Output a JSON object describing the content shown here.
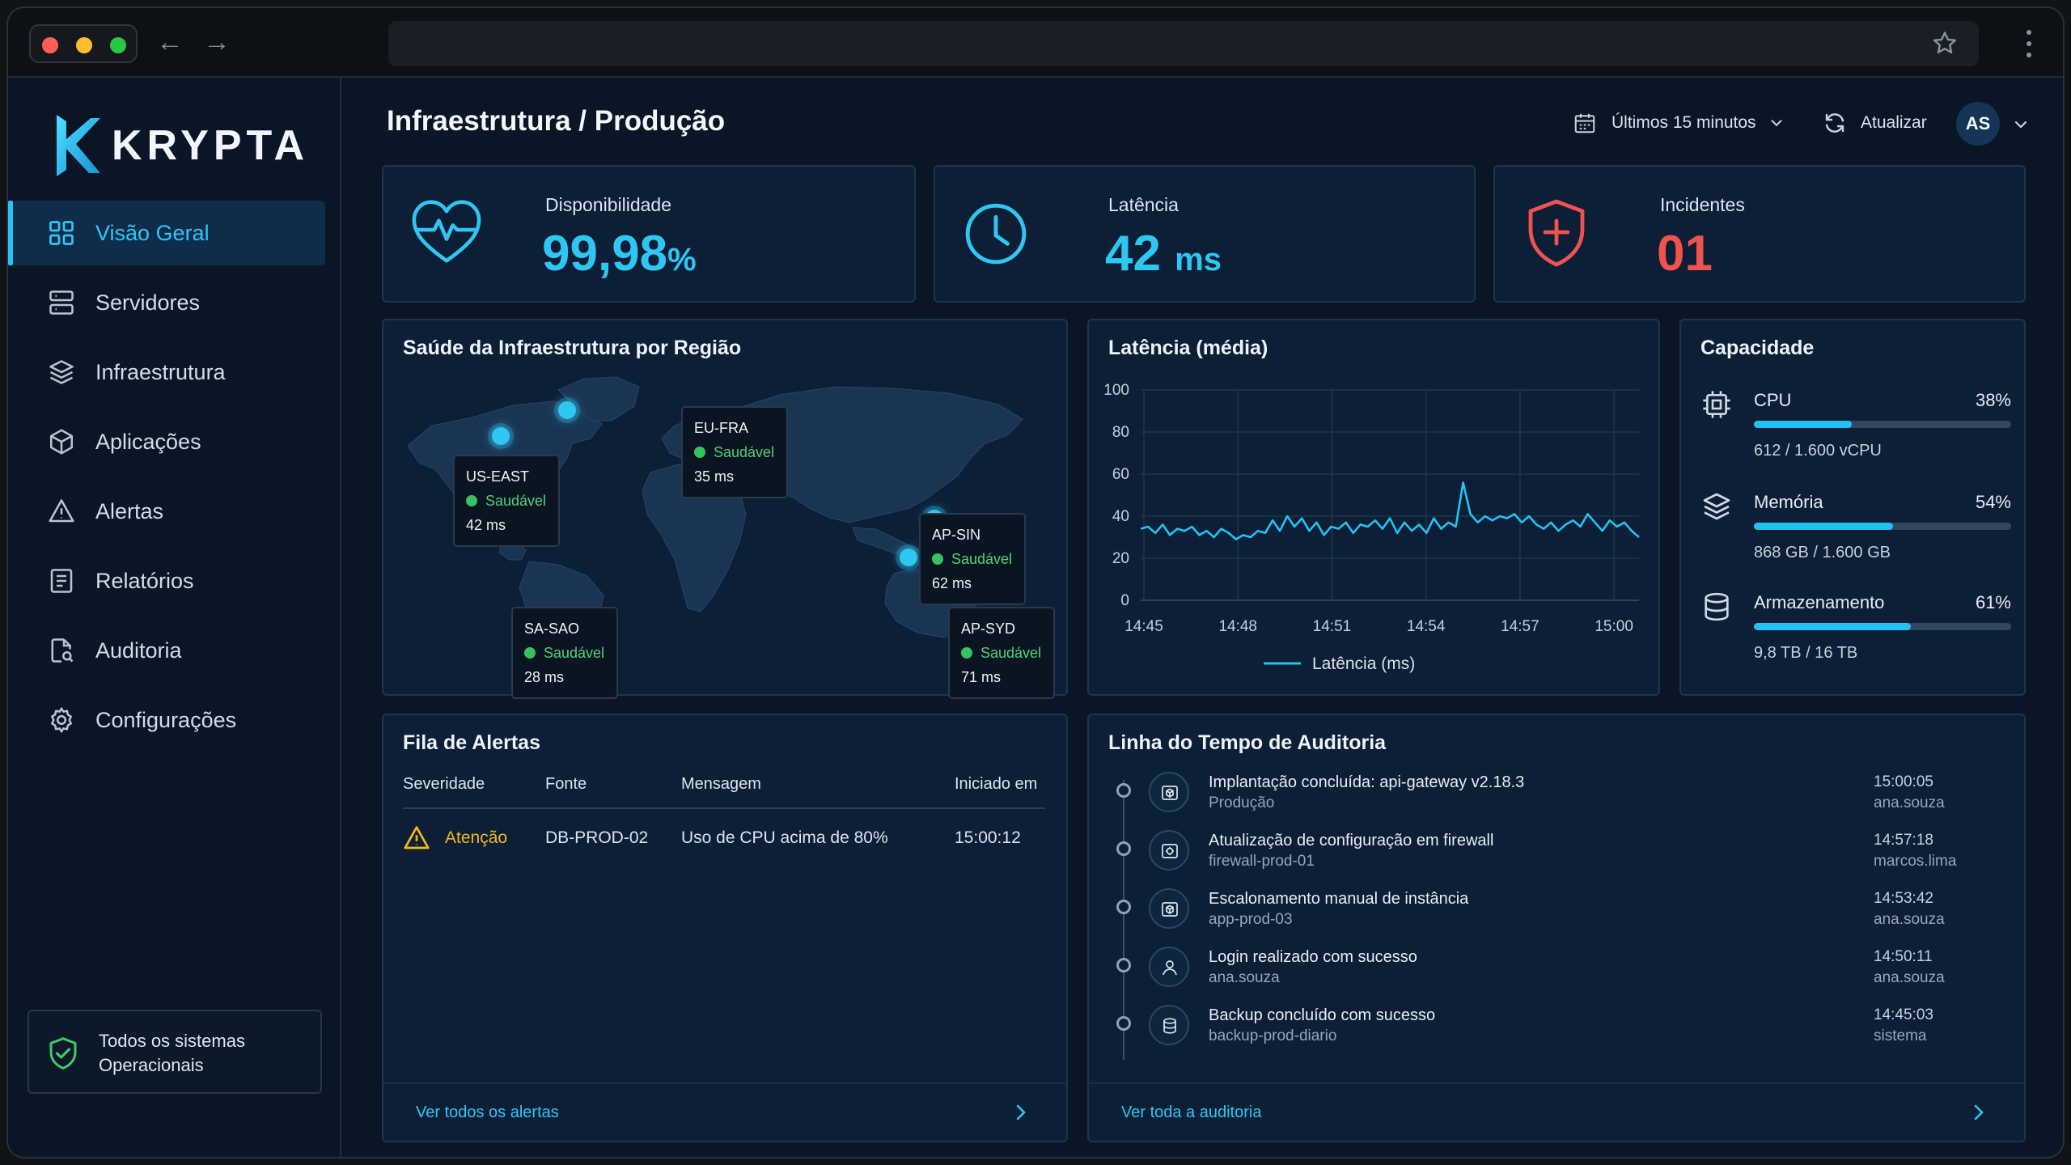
{
  "brand": {
    "name": "KRYPTA",
    "accent": "#22c3f0"
  },
  "sidebar": {
    "items": [
      {
        "label": "Visão Geral",
        "icon": "grid-icon",
        "active": true
      },
      {
        "label": "Servidores",
        "icon": "server-icon"
      },
      {
        "label": "Infraestrutura",
        "icon": "layers-icon"
      },
      {
        "label": "Aplicações",
        "icon": "cube-icon"
      },
      {
        "label": "Alertas",
        "icon": "warning-icon"
      },
      {
        "label": "Relatórios",
        "icon": "report-icon"
      },
      {
        "label": "Auditoria",
        "icon": "audit-icon"
      },
      {
        "label": "Configurações",
        "icon": "gear-icon"
      }
    ],
    "status": {
      "line1": "Todos os sistemas",
      "line2": "Operacionais",
      "icon": "shield-check-icon"
    }
  },
  "header": {
    "title": "Infraestrutura / Produção",
    "time_range": "Últimos 15 minutos",
    "refresh": "Atualizar",
    "avatar": "AS"
  },
  "kpis": [
    {
      "label": "Disponibilidade",
      "value": "99,98",
      "unit": "%",
      "icon": "heart-pulse-icon"
    },
    {
      "label": "Latência",
      "value": "42",
      "unit": "ms",
      "icon": "clock-icon"
    },
    {
      "label": "Incidentes",
      "value": "01",
      "unit": "",
      "icon": "shield-plus-icon",
      "color": "#ef5350"
    }
  ],
  "map": {
    "title": "Saúde da Infraestrutura por Região",
    "regions": [
      {
        "name": "US-EAST",
        "status": "Saudável",
        "latency": "42 ms"
      },
      {
        "name": "EU-FRA",
        "status": "Saudável",
        "latency": "35 ms"
      },
      {
        "name": "AP-SIN",
        "status": "Saudável",
        "latency": "62 ms"
      },
      {
        "name": "SA-SAO",
        "status": "Saudável",
        "latency": "28 ms"
      },
      {
        "name": "AP-SYD",
        "status": "Saudável",
        "latency": "71 ms"
      }
    ]
  },
  "latency_chart": {
    "title": "Latência (média)",
    "legend": "Latência (ms)"
  },
  "chart_data": {
    "type": "line",
    "title": "Latência (média)",
    "x_ticks": [
      "14:45",
      "14:48",
      "14:51",
      "14:54",
      "14:57",
      "15:00"
    ],
    "y_ticks": [
      0,
      20,
      40,
      60,
      80,
      100
    ],
    "ylim": [
      0,
      100
    ],
    "xlim": [
      0,
      17
    ],
    "grid": true,
    "legend_position": "bottom",
    "series": [
      {
        "name": "Latência (ms)",
        "color": "#22c3f0",
        "x": [
          0,
          0.25,
          0.5,
          0.75,
          1,
          1.25,
          1.5,
          1.75,
          2,
          2.25,
          2.5,
          2.75,
          3,
          3.25,
          3.5,
          3.75,
          4,
          4.25,
          4.5,
          4.75,
          5,
          5.25,
          5.5,
          5.75,
          6,
          6.25,
          6.5,
          6.75,
          7,
          7.25,
          7.5,
          7.75,
          8,
          8.25,
          8.5,
          8.75,
          9,
          9.25,
          9.5,
          9.75,
          10,
          10.25,
          10.5,
          10.75,
          11,
          11.25,
          11.5,
          11.75,
          12,
          12.25,
          12.5,
          12.75,
          13,
          13.25,
          13.5,
          13.75,
          14,
          14.25,
          14.5,
          14.75,
          15,
          15.25,
          15.5,
          15.75,
          16,
          16.25,
          16.5,
          16.75,
          17
        ],
        "values": [
          34,
          35,
          32,
          36,
          31,
          34,
          33,
          35,
          31,
          33,
          30,
          34,
          32,
          29,
          31,
          30,
          33,
          32,
          38,
          33,
          40,
          35,
          39,
          33,
          37,
          31,
          35,
          34,
          37,
          32,
          36,
          35,
          38,
          34,
          39,
          32,
          37,
          33,
          36,
          32,
          39,
          34,
          37,
          35,
          56,
          41,
          37,
          40,
          38,
          40,
          39,
          41,
          37,
          40,
          36,
          34,
          37,
          33,
          36,
          38,
          35,
          41,
          37,
          33,
          38,
          35,
          37,
          33,
          30
        ]
      }
    ]
  },
  "capacity": {
    "title": "Capacidade",
    "items": [
      {
        "name": "CPU",
        "percent": 38,
        "percent_label": "38%",
        "detail": "612 / 1.600 vCPU",
        "icon": "cpu-icon"
      },
      {
        "name": "Memória",
        "percent": 54,
        "percent_label": "54%",
        "detail": "868 GB / 1.600 GB",
        "icon": "memory-stack-icon"
      },
      {
        "name": "Armazenamento",
        "percent": 61,
        "percent_label": "61%",
        "detail": "9,8 TB / 16 TB",
        "icon": "database-icon"
      }
    ]
  },
  "alerts": {
    "title": "Fila de Alertas",
    "columns": [
      "Severidade",
      "Fonte",
      "Mensagem",
      "Iniciado em"
    ],
    "rows": [
      {
        "severity": "Atenção",
        "source": "DB-PROD-02",
        "message": "Uso de CPU acima de 80%",
        "started": "15:00:12",
        "color": "#f5b81c"
      }
    ],
    "footer": "Ver todos os alertas"
  },
  "audit": {
    "title": "Linha do Tempo de Auditoria",
    "items": [
      {
        "title": "Implantação concluída: api-gateway v2.18.3",
        "sub": "Produção",
        "time": "15:00:05",
        "user": "ana.souza",
        "icon": "package-icon"
      },
      {
        "title": "Atualização de configuração em firewall",
        "sub": "firewall-prod-01",
        "time": "14:57:18",
        "user": "marcos.lima",
        "icon": "settings-box-icon"
      },
      {
        "title": "Escalonamento manual de instância",
        "sub": "app-prod-03",
        "time": "14:53:42",
        "user": "ana.souza",
        "icon": "scale-icon"
      },
      {
        "title": "Login realizado com sucesso",
        "sub": "ana.souza",
        "time": "14:50:11",
        "user": "ana.souza",
        "icon": "user-icon"
      },
      {
        "title": "Backup concluído com sucesso",
        "sub": "backup-prod-diario",
        "time": "14:45:03",
        "user": "sistema",
        "icon": "backup-icon"
      }
    ],
    "footer": "Ver toda a auditoria"
  }
}
